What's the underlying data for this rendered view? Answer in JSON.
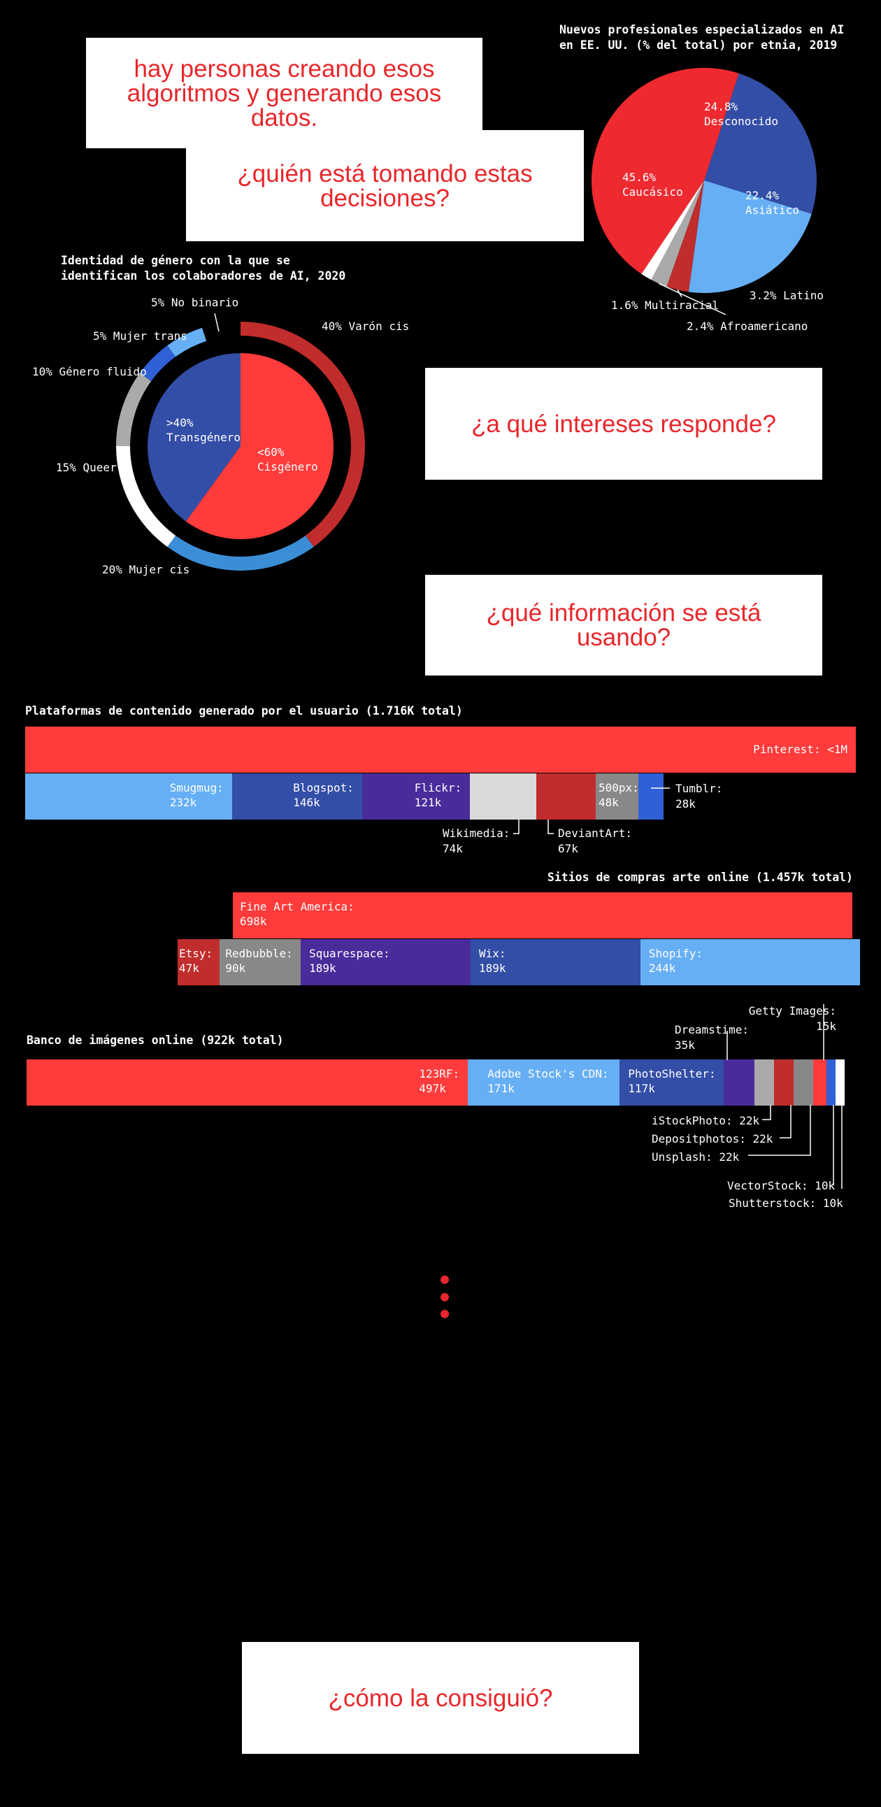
{
  "cards": {
    "c1": "hay personas creando esos algoritmos y generando esos datos.",
    "c2": "¿quién está tomando estas decisiones?",
    "c3": "¿a qué intereses responde?",
    "c4": "¿qué información se está usando?",
    "c5": "¿cómo la consiguió?"
  },
  "colors": {
    "red": "#ff3b3b",
    "darkred": "#c12c2c",
    "lightblue": "#66aff5",
    "navy": "#334ea6",
    "purple": "#4a2b9a",
    "blue": "#3060d6",
    "gray": "#888888",
    "lightgray": "#d9d9d9",
    "white": "#ffffff"
  },
  "chart_data": [
    {
      "type": "pie",
      "title": "Nuevos profesionales especializados en AI\nen EE. UU. (% del total) por etnia, 2019",
      "slices": [
        {
          "label": "Desconocido",
          "value": 24.8,
          "text": "24.8%\nDesconocido",
          "color": "#334ea6"
        },
        {
          "label": "Asiático",
          "value": 22.4,
          "text": "22.4%\nAsiático",
          "color": "#66aff5"
        },
        {
          "label": "Latino",
          "value": 3.2,
          "text": "3.2% Latino",
          "color": "#c12c2c"
        },
        {
          "label": "Afroamericano",
          "value": 2.4,
          "text": "2.4% Afroamericano",
          "color": "#aaaaaa"
        },
        {
          "label": "Multiracial",
          "value": 1.6,
          "text": "1.6% Multiracial",
          "color": "#ffffff"
        },
        {
          "label": "Caucásico",
          "value": 45.6,
          "text": "45.6%\nCaucásico",
          "color": "#ee2a30"
        }
      ]
    },
    {
      "type": "pie",
      "title": "Identidad de género con la que se\nidentifican los colaboradores de AI, 2020",
      "inner": [
        {
          "label": "Transgénero",
          "value": 40,
          "text": ">40%\nTransgénero",
          "color": "#334ea6"
        },
        {
          "label": "Cisgénero",
          "value": 60,
          "text": "<60%\nCisgénero",
          "color": "#ff3b3b"
        }
      ],
      "outer": [
        {
          "label": "Varón cis",
          "value": 40,
          "text": "40% Varón cis",
          "color": "#c12c2c"
        },
        {
          "label": "Mujer cis",
          "value": 20,
          "text": "20% Mujer cis",
          "color": "#3b8ed6"
        },
        {
          "label": "Queer",
          "value": 15,
          "text": "15% Queer",
          "color": "#ffffff"
        },
        {
          "label": "Género fluido",
          "value": 10,
          "text": "10% Género fluido",
          "color": "#aaaaaa"
        },
        {
          "label": "Mujer trans",
          "value": 5,
          "text": "5% Mujer trans",
          "color": "#3060d6"
        },
        {
          "label": "No binario",
          "value": 5,
          "text": "5% No binario",
          "color": "#66aff5"
        }
      ]
    },
    {
      "type": "bar",
      "title": "Plataformas de contenido generado por el usuario (1.716K total)",
      "rows": [
        [
          {
            "label": "Pinterest",
            "value": 1000,
            "text": "Pinterest: <1M",
            "color": "#ff3b3b"
          }
        ],
        [
          {
            "label": "Smugmug",
            "value": 232,
            "text": "Smugmug:\n232k",
            "color": "#66aff5"
          },
          {
            "label": "Blogspot",
            "value": 146,
            "text": "Blogspot:\n146k",
            "color": "#334ea6"
          },
          {
            "label": "Flickr",
            "value": 121,
            "text": "Flickr:\n121k",
            "color": "#4a2b9a"
          },
          {
            "label": "Wikimedia",
            "value": 74,
            "text": "Wikimedia:\n74k",
            "color": "#d9d9d9"
          },
          {
            "label": "DeviantArt",
            "value": 67,
            "text": "DeviantArt:\n67k",
            "color": "#c12c2c"
          },
          {
            "label": "500px",
            "value": 48,
            "text": "500px:\n48k",
            "color": "#888888"
          },
          {
            "label": "Tumblr",
            "value": 28,
            "text": "Tumblr:\n28k",
            "color": "#3060d6"
          }
        ]
      ]
    },
    {
      "type": "bar",
      "title": "Sitios de compras arte online (1.457k total)",
      "rows": [
        [
          {
            "label": "Fine Art America",
            "value": 698,
            "text": "Fine Art America:\n698k",
            "color": "#ff3b3b"
          }
        ],
        [
          {
            "label": "Etsy",
            "value": 47,
            "text": "Etsy:\n47k",
            "color": "#c12c2c"
          },
          {
            "label": "Redbubble",
            "value": 90,
            "text": "Redbubble:\n90k",
            "color": "#888888"
          },
          {
            "label": "Squarespace",
            "value": 189,
            "text": "Squarespace:\n189k",
            "color": "#4a2b9a"
          },
          {
            "label": "Wix",
            "value": 189,
            "text": "Wix:\n189k",
            "color": "#334ea6"
          },
          {
            "label": "Shopify",
            "value": 244,
            "text": "Shopify:\n244k",
            "color": "#66aff5"
          }
        ]
      ]
    },
    {
      "type": "bar",
      "title": "Banco de imágenes online (922k total)",
      "rows": [
        [
          {
            "label": "123RF",
            "value": 497,
            "text": "123RF:\n497k",
            "color": "#ff3b3b"
          },
          {
            "label": "Adobe Stock's CDN",
            "value": 171,
            "text": "Adobe Stock's CDN:\n171k",
            "color": "#66aff5"
          },
          {
            "label": "PhotoShelter",
            "value": 117,
            "text": "PhotoShelter:\n117k",
            "color": "#334ea6"
          },
          {
            "label": "Dreamstime",
            "value": 35,
            "text": "Dreamstime:\n35k",
            "color": "#4a2b9a"
          },
          {
            "label": "iStockPhoto",
            "value": 22,
            "text": "iStockPhoto: 22k",
            "color": "#aaaaaa"
          },
          {
            "label": "Depositphotos",
            "value": 22,
            "text": "Depositphotos: 22k",
            "color": "#c12c2c"
          },
          {
            "label": "Unsplash",
            "value": 22,
            "text": "Unsplash: 22k",
            "color": "#888888"
          },
          {
            "label": "Getty Images",
            "value": 15,
            "text": "Getty Images:\n15k",
            "color": "#ff3b3b"
          },
          {
            "label": "VectorStock",
            "value": 10,
            "text": "VectorStock: 10k",
            "color": "#3060d6"
          },
          {
            "label": "Shutterstock",
            "value": 10,
            "text": "Shutterstock: 10k",
            "color": "#ffffff"
          }
        ]
      ]
    }
  ]
}
